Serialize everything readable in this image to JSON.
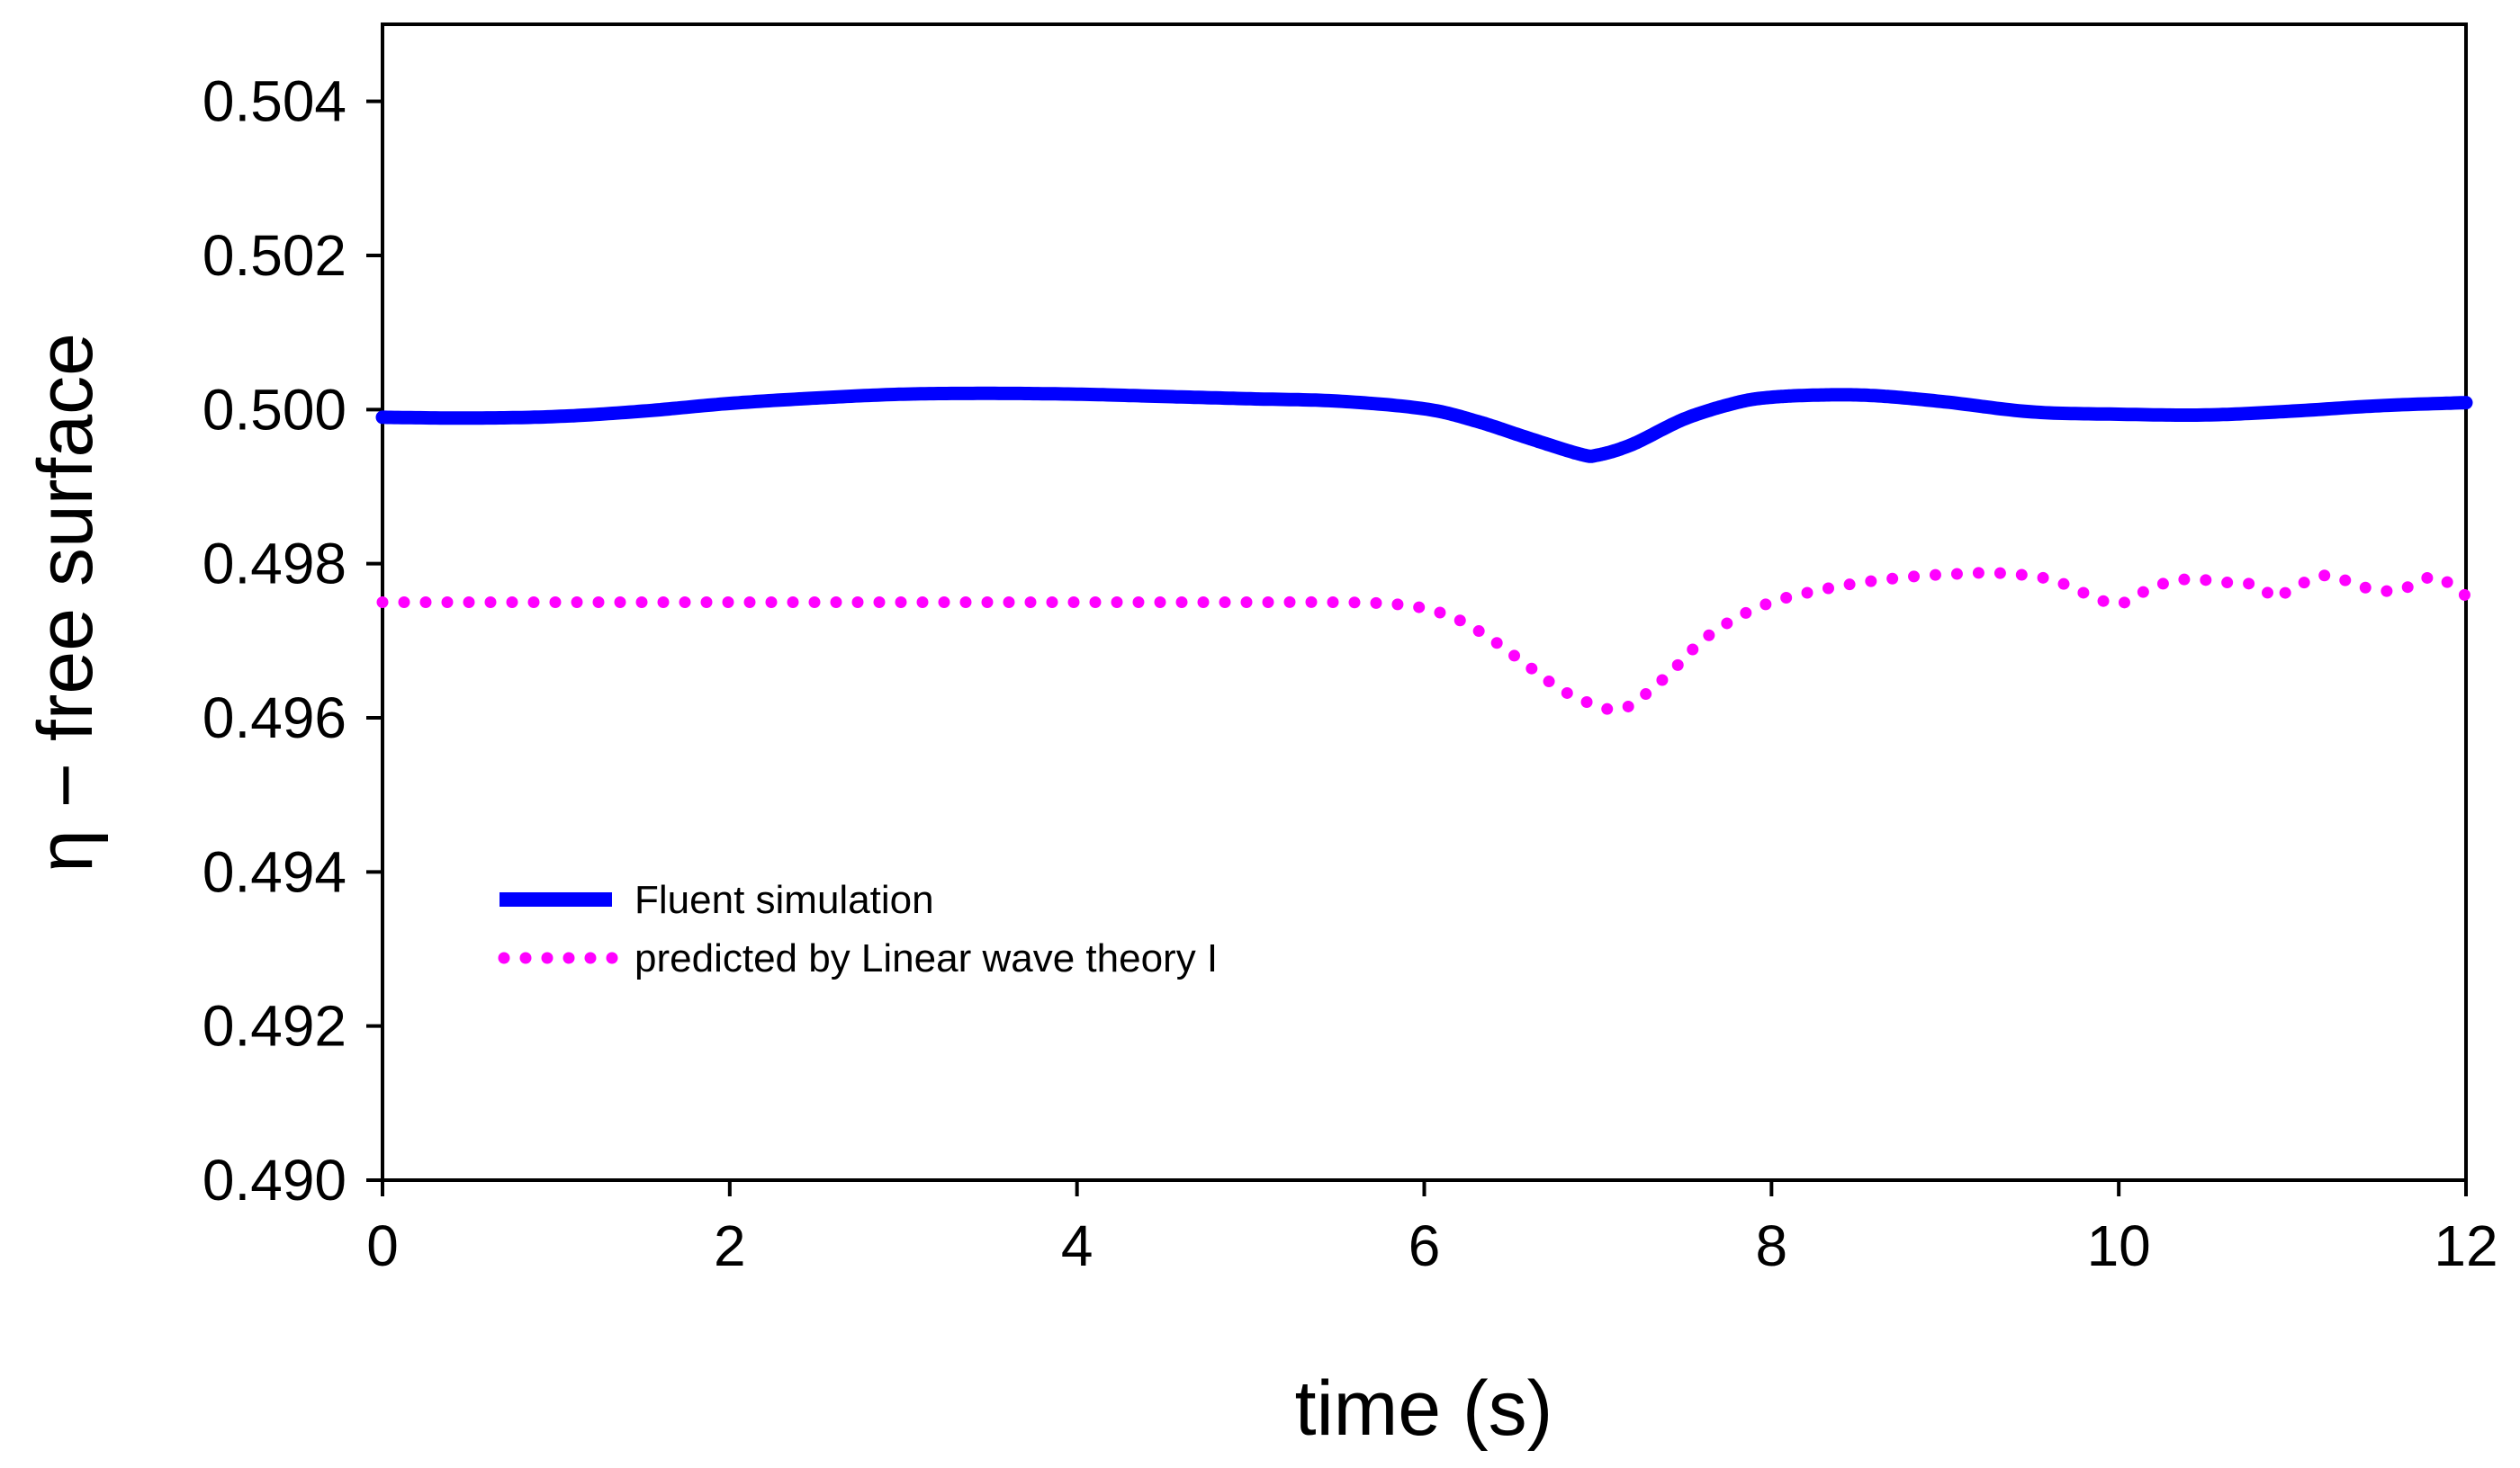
{
  "chart_data": {
    "type": "line",
    "title": "",
    "xlabel": "time (s)",
    "ylabel": "η − free surface",
    "xlim": [
      0,
      12
    ],
    "ylim": [
      0.49,
      0.505
    ],
    "xticks": [
      0,
      2,
      4,
      6,
      8,
      10,
      12
    ],
    "yticks": [
      0.49,
      0.492,
      0.494,
      0.496,
      0.498,
      0.5,
      0.502,
      0.504
    ],
    "xtick_labels": [
      "0",
      "2",
      "4",
      "6",
      "8",
      "10",
      "12"
    ],
    "ytick_labels": [
      "0.490",
      "0.492",
      "0.494",
      "0.496",
      "0.498",
      "0.500",
      "0.502",
      "0.504"
    ],
    "grid": false,
    "legend_position": "lower-left",
    "series": [
      {
        "name": "Fluent simulation",
        "style": "solid",
        "color": "#0000ff",
        "x": [
          0,
          0.5,
          1,
          1.5,
          2,
          2.5,
          3,
          3.5,
          4,
          4.5,
          5,
          5.5,
          6,
          6.3,
          6.6,
          6.9,
          7.0,
          7.2,
          7.5,
          7.8,
          8.0,
          8.3,
          8.6,
          9.0,
          9.5,
          10,
          10.5,
          11,
          11.5,
          12
        ],
        "y": [
          0.4999,
          0.49989,
          0.49991,
          0.49998,
          0.50008,
          0.50015,
          0.5002,
          0.50021,
          0.5002,
          0.50017,
          0.50014,
          0.50011,
          0.50001,
          0.49985,
          0.49963,
          0.49942,
          0.49941,
          0.49955,
          0.49988,
          0.50009,
          0.50016,
          0.50019,
          0.50018,
          0.5001,
          0.49997,
          0.49994,
          0.49993,
          0.49998,
          0.50005,
          0.50009
        ]
      },
      {
        "name": "predicted by Linear wave theory I",
        "style": "dotted",
        "color": "#ff00ff",
        "x": [
          0,
          1,
          2,
          3,
          4,
          5,
          5.5,
          5.8,
          6.0,
          6.2,
          6.4,
          6.6,
          6.8,
          7.0,
          7.1,
          7.2,
          7.4,
          7.6,
          7.8,
          8.0,
          8.2,
          8.5,
          8.8,
          9.0,
          9.3,
          9.6,
          9.8,
          10.0,
          10.2,
          10.4,
          10.6,
          10.8,
          10.9,
          11.0,
          11.2,
          11.4,
          11.6,
          11.8,
          11.9,
          12.0
        ],
        "y": [
          0.4975,
          0.4975,
          0.4975,
          0.4975,
          0.4975,
          0.4975,
          0.4975,
          0.49748,
          0.49742,
          0.49727,
          0.497,
          0.49667,
          0.49635,
          0.49615,
          0.49611,
          0.49618,
          0.49655,
          0.497,
          0.4973,
          0.4975,
          0.49762,
          0.49775,
          0.49783,
          0.49786,
          0.49788,
          0.4978,
          0.49762,
          0.49748,
          0.4977,
          0.4978,
          0.49776,
          0.49772,
          0.49755,
          0.49768,
          0.49785,
          0.4977,
          0.49765,
          0.49783,
          0.49775,
          0.49758
        ]
      }
    ]
  }
}
